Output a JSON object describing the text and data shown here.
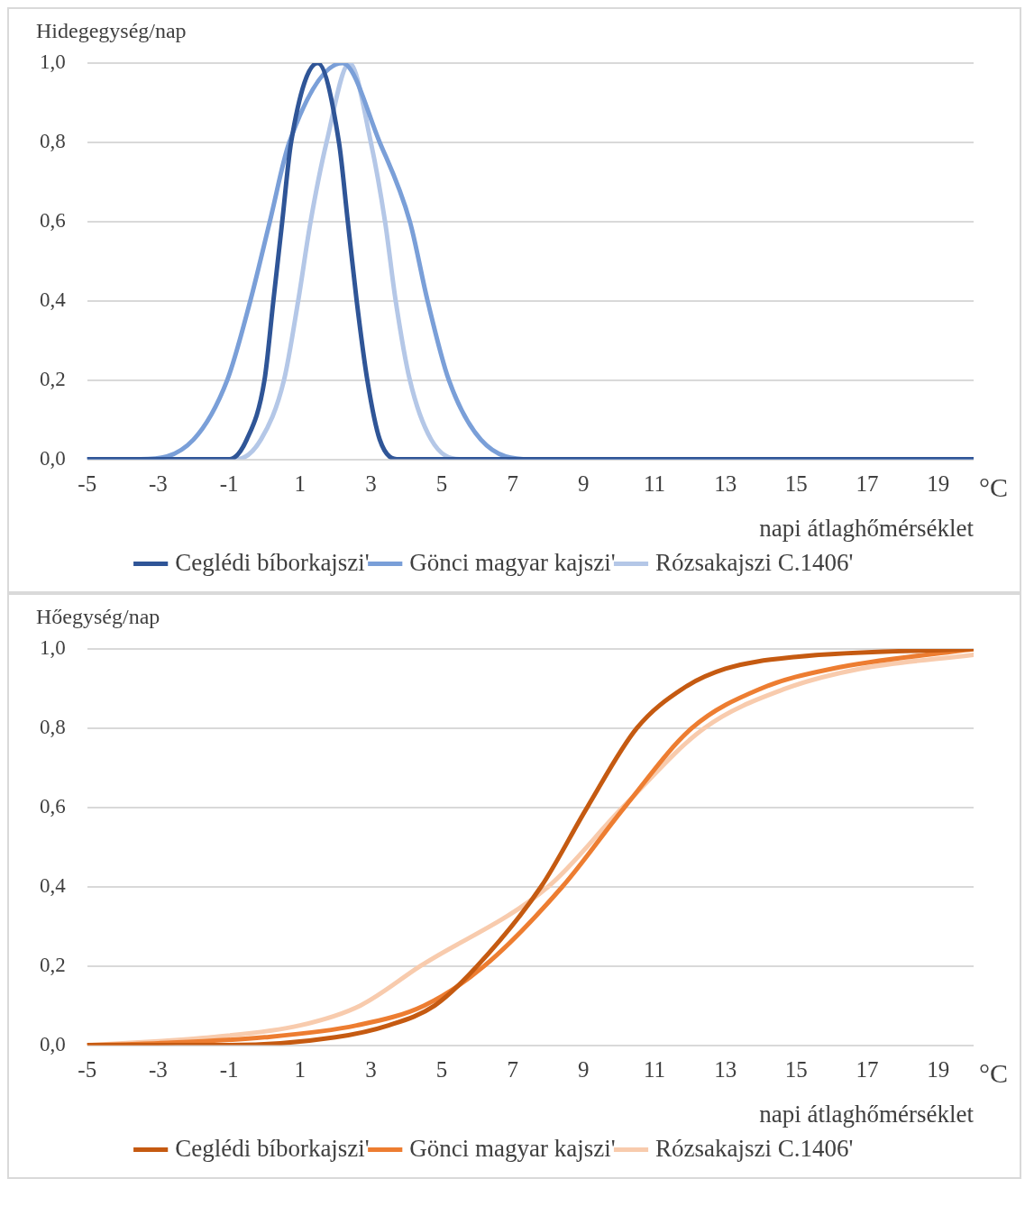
{
  "chart_data": [
    {
      "type": "line",
      "ylabel": "Hidegegység/nap",
      "xlabel": "napi átlaghőmérséklet",
      "annotations": [
        "°C"
      ],
      "legend": "bottom",
      "grid": "y",
      "line_style": "solid",
      "marker": "none",
      "xlim": [
        -5,
        20
      ],
      "xticks": [
        -5,
        -3,
        -1,
        1,
        3,
        5,
        7,
        9,
        11,
        13,
        15,
        17,
        19
      ],
      "ylim": [
        0,
        1
      ],
      "yticks": [
        {
          "value": 0,
          "label": "0,0"
        },
        {
          "value": 0.2,
          "label": "0,2"
        },
        {
          "value": 0.4,
          "label": "0,4"
        },
        {
          "value": 0.6,
          "label": "0,6"
        },
        {
          "value": 0.8,
          "label": "0,8"
        },
        {
          "value": 1,
          "label": "1,0"
        }
      ],
      "series": [
        {
          "name": "Ceglédi bíborkajszi'",
          "color": "#2f5597",
          "x": [
            -5,
            -1,
            -0.5,
            0,
            0.25,
            0.5,
            0.75,
            1.5,
            2.1,
            2.35,
            2.6,
            2.9,
            3.25,
            3.8,
            20
          ],
          "values": [
            0,
            0,
            0.05,
            0.2,
            0.4,
            0.6,
            0.8,
            1,
            0.8,
            0.6,
            0.4,
            0.2,
            0.05,
            0,
            0
          ]
        },
        {
          "name": "Gönci magyar kajszi'",
          "color": "#7a9fd8",
          "x": [
            -5,
            -3.5,
            -2,
            -1.05,
            -0.4,
            0.15,
            0.7,
            2.2,
            3.25,
            4.1,
            4.6,
            5.2,
            6.1,
            7.5,
            20
          ],
          "values": [
            0,
            0,
            0.05,
            0.2,
            0.4,
            0.6,
            0.8,
            1,
            0.8,
            0.6,
            0.4,
            0.2,
            0.05,
            0,
            0
          ]
        },
        {
          "name": "Rózsakajszi C.1406'",
          "color": "#b4c7e7",
          "x": [
            -5,
            -0.8,
            -0.1,
            0.55,
            0.95,
            1.3,
            1.75,
            2.4,
            3,
            3.4,
            3.7,
            4.1,
            4.7,
            5.5,
            20
          ],
          "values": [
            0,
            0,
            0.05,
            0.2,
            0.4,
            0.6,
            0.8,
            1,
            0.8,
            0.6,
            0.4,
            0.2,
            0.05,
            0,
            0
          ]
        }
      ]
    },
    {
      "type": "line",
      "ylabel": "Hőegység/nap",
      "xlabel": "napi átlaghőmérséklet",
      "annotations": [
        "°C"
      ],
      "legend": "bottom",
      "grid": "y",
      "line_style": "solid",
      "marker": "none",
      "xlim": [
        -5,
        20
      ],
      "xticks": [
        -5,
        -3,
        -1,
        1,
        3,
        5,
        7,
        9,
        11,
        13,
        15,
        17,
        19
      ],
      "ylim": [
        0,
        1
      ],
      "yticks": [
        {
          "value": 0,
          "label": "0,0"
        },
        {
          "value": 0.2,
          "label": "0,2"
        },
        {
          "value": 0.4,
          "label": "0,4"
        },
        {
          "value": 0.6,
          "label": "0,6"
        },
        {
          "value": 0.8,
          "label": "0,8"
        },
        {
          "value": 1,
          "label": "1,0"
        }
      ],
      "series": [
        {
          "name": "Ceglédi bíborkajszi'",
          "color": "#c55a11",
          "x": [
            -5,
            -1,
            2,
            3.5,
            4.8,
            6,
            7.8,
            9.1,
            10.5,
            11.8,
            13,
            15,
            20
          ],
          "values": [
            0,
            0,
            0.02,
            0.05,
            0.1,
            0.2,
            0.4,
            0.6,
            0.8,
            0.9,
            0.95,
            0.98,
            1
          ]
        },
        {
          "name": "Gönci magyar kajszi'",
          "color": "#ed7d31",
          "x": [
            -5,
            -3,
            0,
            2.6,
            4.5,
            6.2,
            8.4,
            10.15,
            12.05,
            14,
            16,
            20
          ],
          "values": [
            0,
            0.005,
            0.02,
            0.05,
            0.1,
            0.2,
            0.4,
            0.6,
            0.8,
            0.9,
            0.95,
            1
          ]
        },
        {
          "name": "Rózsakajszi C.1406'",
          "color": "#f8cbad",
          "x": [
            -5,
            -3,
            -1.5,
            1,
            2.7,
            4.4,
            8,
            10.1,
            12.4,
            14.7,
            16.8,
            20
          ],
          "values": [
            0,
            0.01,
            0.02,
            0.05,
            0.1,
            0.2,
            0.4,
            0.6,
            0.8,
            0.9,
            0.95,
            0.985
          ]
        }
      ]
    }
  ]
}
